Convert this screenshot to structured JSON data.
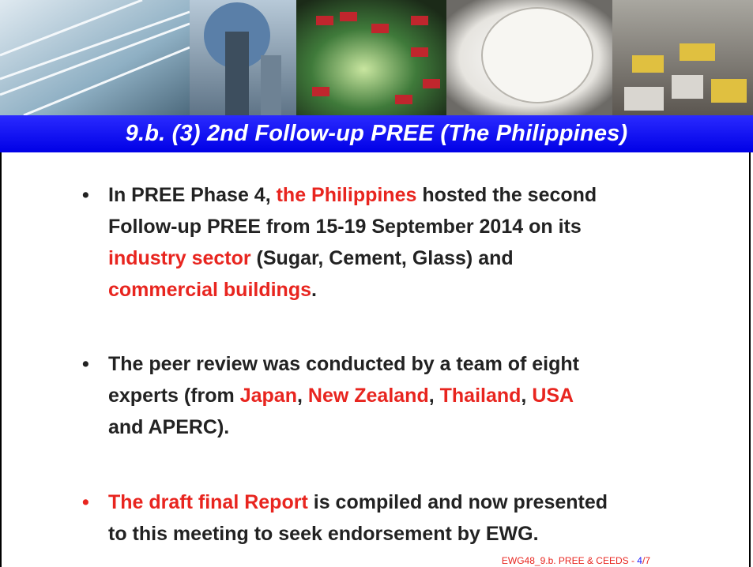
{
  "header": {
    "title": "9.b.  (3) 2nd Follow-up PREE (The Philippines)"
  },
  "bullets": [
    {
      "color": "#222222",
      "lines": [
        [
          {
            "text": "In PREE Phase 4, "
          },
          {
            "text": "the Philippines",
            "color": "#e8251f"
          },
          {
            "text": " hosted the second"
          }
        ],
        [
          {
            "text": "Follow-up PREE from 15-19 September 2014 on its"
          }
        ],
        [
          {
            "text": "industry sector",
            "color": "#e8251f"
          },
          {
            "text": " (Sugar, Cement, Glass) and"
          }
        ],
        [
          {
            "text": "commercial buildings",
            "color": "#e8251f"
          },
          {
            "text": "."
          }
        ]
      ]
    },
    {
      "color": "#222222",
      "lines": [
        [
          {
            "text": "The peer review was conducted by a team of eight"
          }
        ],
        [
          {
            "text": "experts  (from  "
          },
          {
            "text": "Japan",
            "color": "#e8251f"
          },
          {
            "text": ", "
          },
          {
            "text": "New Zealand",
            "color": "#e8251f"
          },
          {
            "text": ", "
          },
          {
            "text": "Thailand",
            "color": "#e8251f"
          },
          {
            "text": ", "
          },
          {
            "text": "USA",
            "color": "#e8251f"
          }
        ],
        [
          {
            "text": "and APERC)."
          }
        ]
      ]
    },
    {
      "color": "#e8251f",
      "lines": [
        [
          {
            "text": "The draft final Report",
            "color": "#e8251f"
          },
          {
            "text": " is compiled and now presented"
          }
        ],
        [
          {
            "text": "to this meeting to seek endorsement by EWG."
          }
        ]
      ]
    }
  ],
  "footer": [
    {
      "text": "EWG48_9.b. PREE & CEEDS - ",
      "color": "#e8251f"
    },
    {
      "text": "4",
      "color": "#1a1aff"
    },
    {
      "text": "/7",
      "color": "#e8251f"
    }
  ]
}
